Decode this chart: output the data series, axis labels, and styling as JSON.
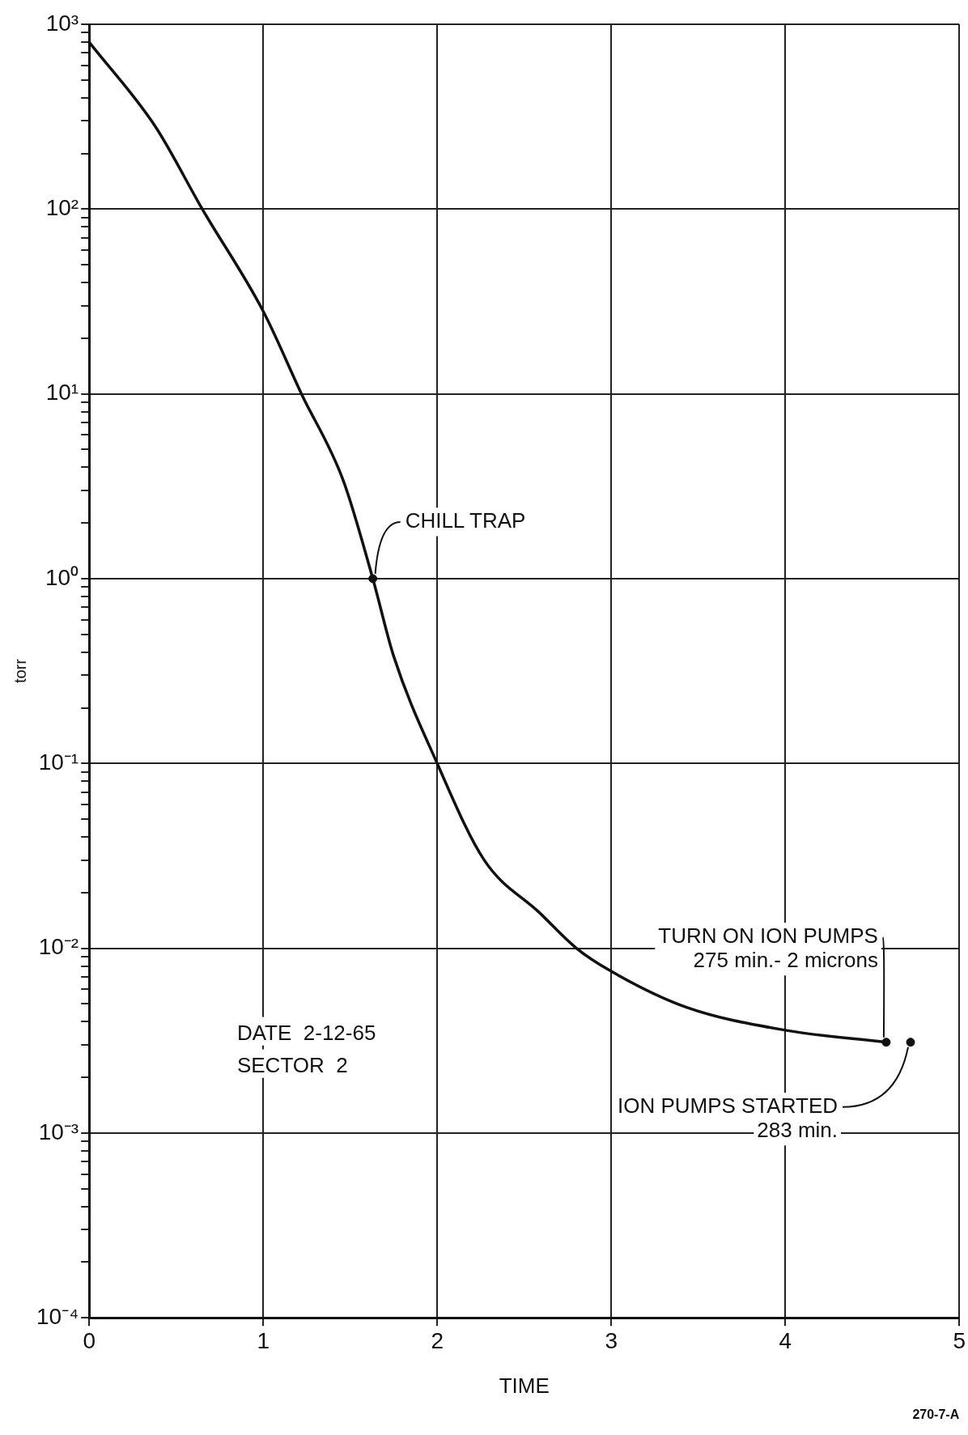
{
  "chart_data": {
    "type": "line",
    "xlabel": "TIME",
    "ylabel": "torr",
    "xlim": [
      0,
      5
    ],
    "xticks": [
      0,
      1,
      2,
      3,
      4,
      5
    ],
    "ylim": [
      0.0001,
      1000
    ],
    "log": "y",
    "grid": true,
    "legend": false,
    "marker": "none",
    "line_style": "solid",
    "yticks": [
      {
        "value": 0.0001,
        "label": "10⁻⁴"
      },
      {
        "value": 0.0002,
        "label": null
      },
      {
        "value": 0.0003,
        "label": null
      },
      {
        "value": 0.0004,
        "label": null
      },
      {
        "value": 0.0005,
        "label": null
      },
      {
        "value": 0.0006,
        "label": null
      },
      {
        "value": 0.0007,
        "label": null
      },
      {
        "value": 0.0008,
        "label": null
      },
      {
        "value": 0.0009,
        "label": null
      },
      {
        "value": 0.001,
        "label": "10⁻³"
      },
      {
        "value": 0.002,
        "label": null
      },
      {
        "value": 0.003,
        "label": null
      },
      {
        "value": 0.004,
        "label": null
      },
      {
        "value": 0.005,
        "label": null
      },
      {
        "value": 0.006,
        "label": null
      },
      {
        "value": 0.007,
        "label": null
      },
      {
        "value": 0.008,
        "label": null
      },
      {
        "value": 0.009,
        "label": null
      },
      {
        "value": 0.01,
        "label": "10⁻²"
      },
      {
        "value": 0.02,
        "label": null
      },
      {
        "value": 0.03,
        "label": null
      },
      {
        "value": 0.04,
        "label": null
      },
      {
        "value": 0.05,
        "label": null
      },
      {
        "value": 0.06,
        "label": null
      },
      {
        "value": 0.07,
        "label": null
      },
      {
        "value": 0.08,
        "label": null
      },
      {
        "value": 0.09,
        "label": null
      },
      {
        "value": 0.1,
        "label": "10⁻¹"
      },
      {
        "value": 0.2,
        "label": null
      },
      {
        "value": 0.3,
        "label": null
      },
      {
        "value": 0.4,
        "label": null
      },
      {
        "value": 0.5,
        "label": null
      },
      {
        "value": 0.6,
        "label": null
      },
      {
        "value": 0.7,
        "label": null
      },
      {
        "value": 0.8,
        "label": null
      },
      {
        "value": 0.9,
        "label": null
      },
      {
        "value": 1,
        "label": "10⁰"
      },
      {
        "value": 2,
        "label": null
      },
      {
        "value": 3,
        "label": null
      },
      {
        "value": 4,
        "label": null
      },
      {
        "value": 5,
        "label": null
      },
      {
        "value": 6,
        "label": null
      },
      {
        "value": 7,
        "label": null
      },
      {
        "value": 8,
        "label": null
      },
      {
        "value": 9,
        "label": null
      },
      {
        "value": 10,
        "label": "10¹"
      },
      {
        "value": 20,
        "label": null
      },
      {
        "value": 30,
        "label": null
      },
      {
        "value": 40,
        "label": null
      },
      {
        "value": 50,
        "label": null
      },
      {
        "value": 60,
        "label": null
      },
      {
        "value": 70,
        "label": null
      },
      {
        "value": 80,
        "label": null
      },
      {
        "value": 90,
        "label": null
      },
      {
        "value": 100,
        "label": "10²"
      },
      {
        "value": 200,
        "label": null
      },
      {
        "value": 300,
        "label": null
      },
      {
        "value": 400,
        "label": null
      },
      {
        "value": 500,
        "label": null
      },
      {
        "value": 600,
        "label": null
      },
      {
        "value": 700,
        "label": null
      },
      {
        "value": 800,
        "label": null
      },
      {
        "value": 900,
        "label": null
      },
      {
        "value": 1000,
        "label": "10³"
      }
    ],
    "series": [
      {
        "type": "line",
        "color": "#111111",
        "x": [
          0,
          0.38,
          0.65,
          1.0,
          1.22,
          1.46,
          1.63,
          1.75,
          2.0,
          2.27,
          2.59,
          2.8,
          3.0,
          3.43,
          4.0,
          4.58
        ],
        "values": [
          800,
          280,
          100,
          28,
          10,
          3.4,
          1,
          0.38,
          0.1,
          0.03,
          0.0155,
          0.01,
          0.0075,
          0.0048,
          0.0036,
          0.0031
        ]
      },
      {
        "type": "scatter",
        "color": "#111111",
        "marker": "circle",
        "x": [
          1.63,
          4.58,
          4.72
        ],
        "values": [
          1,
          0.0031,
          0.0031
        ]
      }
    ],
    "annotations": [
      {
        "text": "CHILL TRAP",
        "x": 1.63,
        "y": 1
      },
      {
        "text": "TURN ON ION PUMPS\n275 min.- 2 microns",
        "x": 4.58,
        "y": 0.0031
      },
      {
        "text": "ION PUMPS STARTED\n283 min.",
        "x": 4.72,
        "y": 0.0031
      },
      "DATE  2-12-65",
      "SECTOR  2",
      "270-7-A"
    ]
  }
}
